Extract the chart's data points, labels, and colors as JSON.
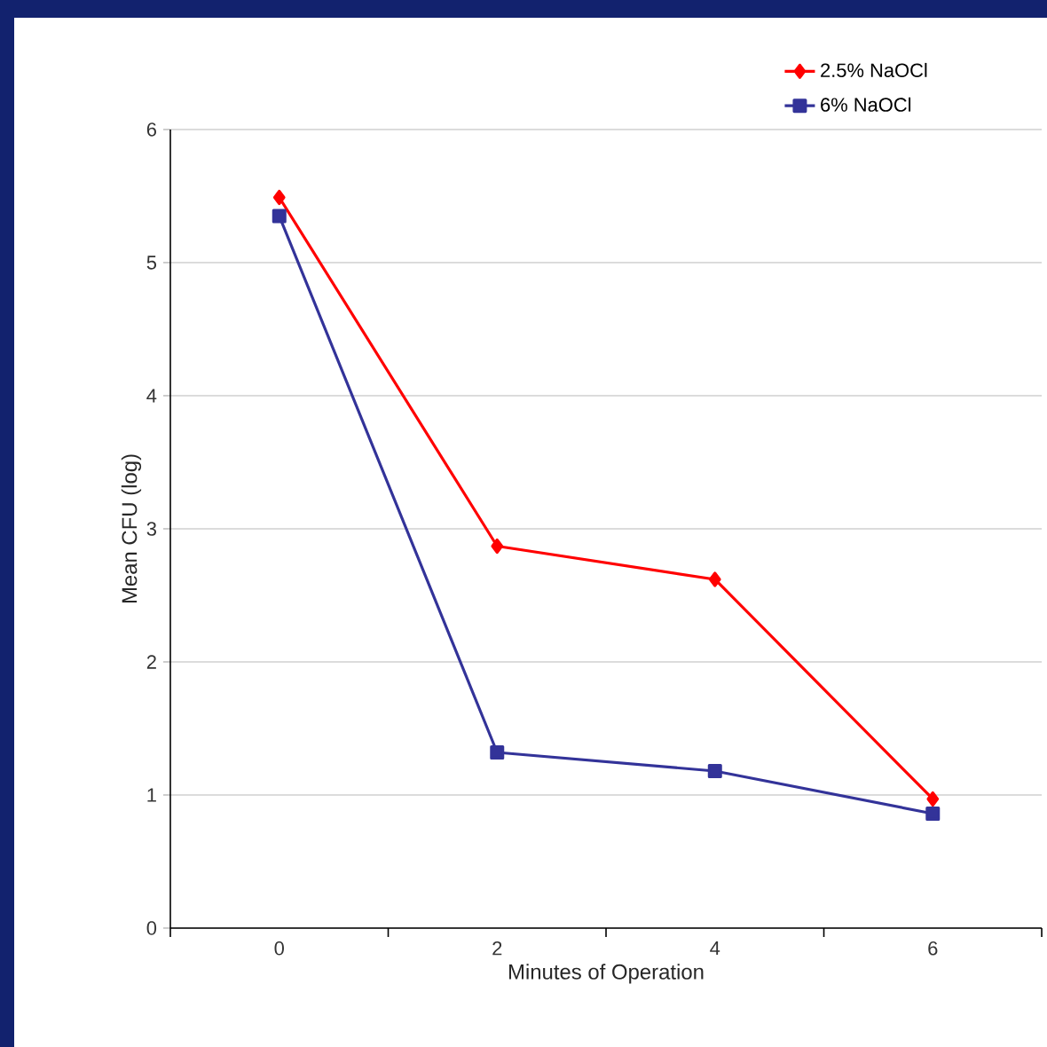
{
  "chart_data": {
    "type": "line",
    "xlabel": "Minutes of Operation",
    "ylabel": "Mean  CFU  (log)",
    "categories": [
      "0",
      "2",
      "4",
      "6"
    ],
    "series": [
      {
        "name": "2.5% NaOCl",
        "color": "#ff0000",
        "marker": "diamond",
        "values": [
          5.49,
          2.87,
          2.62,
          0.97
        ]
      },
      {
        "name": "6% NaOCl",
        "color": "#333399",
        "marker": "square",
        "values": [
          5.35,
          1.32,
          1.18,
          0.86
        ]
      }
    ],
    "ylim": [
      0,
      6
    ],
    "yticks": [
      0,
      1,
      2,
      3,
      4,
      5,
      6
    ],
    "grid": "y",
    "legend": "top right"
  }
}
